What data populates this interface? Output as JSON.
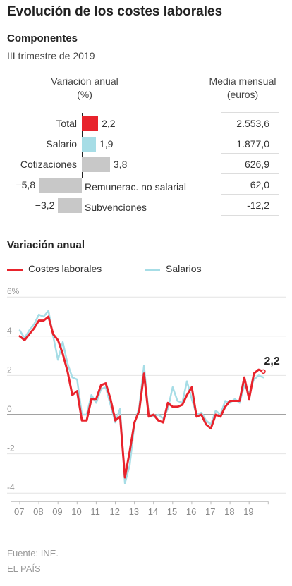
{
  "title": "Evolución de los costes laborales",
  "components": {
    "heading": "Componentes",
    "period": "III trimestre de 2019",
    "variation_header": [
      "Variación anual",
      "(%)"
    ],
    "monthly_header": [
      "Media mensual",
      "(euros)"
    ],
    "rows": [
      {
        "label": "Total",
        "value": 2.2,
        "value_text": "2,2",
        "monthly": "2.553,6",
        "color": "#e8232c"
      },
      {
        "label": "Salario",
        "value": 1.9,
        "value_text": "1,9",
        "monthly": "1.877,0",
        "color": "#a6dde6"
      },
      {
        "label": "Cotizaciones",
        "value": 3.8,
        "value_text": "3,8",
        "monthly": "626,9",
        "color": "#c8c8c8"
      },
      {
        "label": "Remunerac. no salarial",
        "value": -5.8,
        "value_text": "−5,8",
        "monthly": "62,0",
        "color": "#c8c8c8"
      },
      {
        "label": "Subvenciones",
        "value": -3.2,
        "value_text": "−3,2",
        "monthly": "-12,2",
        "color": "#c8c8c8"
      }
    ]
  },
  "line_chart": {
    "heading": "Variación anual",
    "legend": [
      {
        "name": "Costes laborales",
        "color": "#e8232c"
      },
      {
        "name": "Salarios",
        "color": "#a6dde6"
      }
    ],
    "end_label": "2,2"
  },
  "chart_data": {
    "type": "line",
    "x_labels": [
      "07",
      "08",
      "09",
      "10",
      "11",
      "12",
      "13",
      "14",
      "15",
      "16",
      "17",
      "18",
      "19"
    ],
    "y_tick_labels": [
      "6%",
      "4",
      "2",
      "0",
      "-2",
      "-4"
    ],
    "y_ticks": [
      6,
      4,
      2,
      0,
      -2,
      -4
    ],
    "ylim": [
      -4.5,
      6
    ],
    "x_start": 2007,
    "points_per_year": 4,
    "grid": true,
    "series": [
      {
        "name": "Costes laborales",
        "color": "#e8232c",
        "values": [
          4.0,
          3.8,
          4.1,
          4.4,
          4.8,
          4.8,
          5.0,
          4.1,
          3.8,
          3.1,
          2.2,
          1.0,
          1.2,
          -0.3,
          -0.3,
          0.8,
          0.8,
          1.5,
          1.6,
          0.8,
          -0.3,
          -0.1,
          -3.2,
          -1.9,
          -0.4,
          0.2,
          2.1,
          -0.1,
          0.0,
          -0.3,
          -0.4,
          0.6,
          0.4,
          0.4,
          0.5,
          1.0,
          1.4,
          -0.1,
          0.0,
          -0.5,
          -0.7,
          0.0,
          -0.1,
          0.4,
          0.7,
          0.7,
          0.7,
          1.9,
          0.8,
          2.1,
          2.3,
          2.2
        ]
      },
      {
        "name": "Salarios",
        "color": "#a6dde6",
        "values": [
          4.3,
          3.9,
          4.3,
          4.6,
          5.1,
          5.0,
          5.3,
          4.0,
          2.8,
          3.7,
          2.6,
          1.9,
          1.8,
          0.0,
          0.0,
          1.0,
          0.6,
          1.3,
          1.4,
          0.5,
          -0.4,
          0.3,
          -3.5,
          -2.6,
          -0.5,
          0.4,
          2.5,
          0.0,
          -0.1,
          0.0,
          -0.2,
          0.3,
          1.4,
          0.7,
          0.6,
          1.7,
          0.8,
          0.0,
          0.1,
          -0.3,
          -0.5,
          0.2,
          0.0,
          0.7,
          0.6,
          0.8,
          0.6,
          1.5,
          1.1,
          1.8,
          2.0,
          1.9
        ]
      }
    ]
  },
  "footer": {
    "source": "Fuente: INE.",
    "publisher": "EL PAÍS"
  }
}
